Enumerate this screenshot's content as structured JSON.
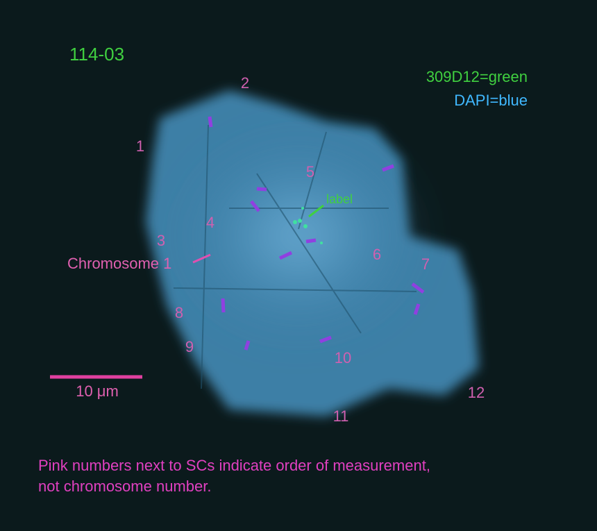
{
  "header": {
    "title": "114-03"
  },
  "legend": {
    "items": [
      "309D12=green",
      "DAPI=blue"
    ]
  },
  "markers": [
    "1",
    "2",
    "3",
    "4",
    "5",
    "6",
    "7",
    "8",
    "9",
    "10",
    "11",
    "12"
  ],
  "annotations": {
    "label": "label",
    "chromosome": "Chromosome 1"
  },
  "scale_bar": {
    "label": "10 μm"
  },
  "caption": {
    "lines": [
      "Pink numbers next to SCs indicate order of measurement,",
      "not chromosome number."
    ]
  }
}
